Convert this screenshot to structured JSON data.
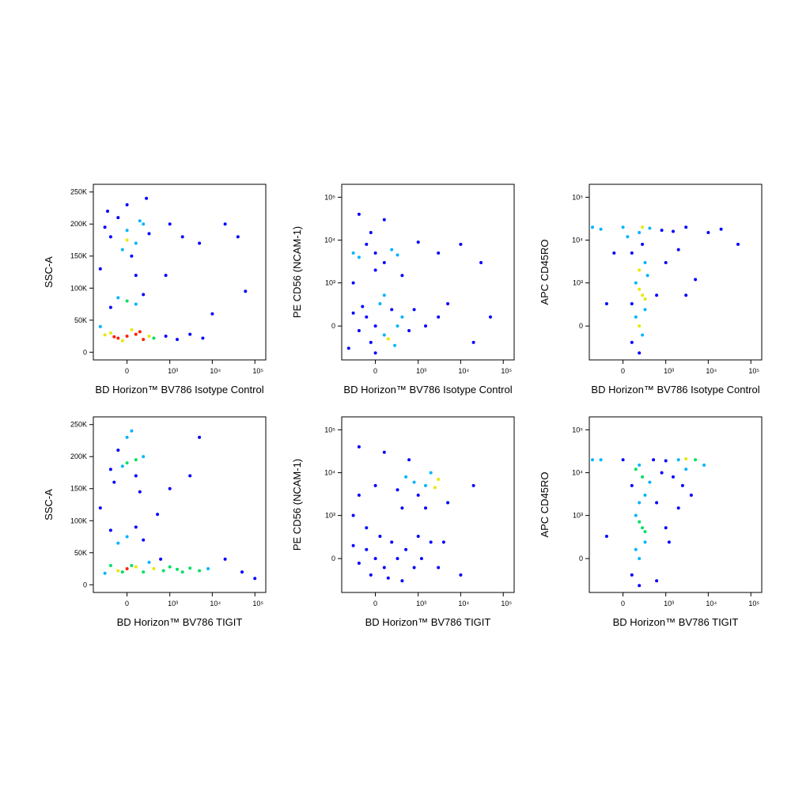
{
  "chart_data": [
    {
      "type": "scatter",
      "x_label": "BD Horizon™ BV786 Isotype Control",
      "y_label": "SSC-A",
      "x_scale": "biexponential",
      "y_scale": "linear",
      "xlim": [
        -600,
        180000
      ],
      "ylim": [
        -12000,
        262000
      ],
      "xticks": [
        0,
        {
          "value": 1000,
          "label": "10³"
        },
        {
          "value": 10000,
          "label": "10⁴"
        },
        {
          "value": 100000,
          "label": "10⁵"
        }
      ],
      "yticks": [
        0,
        {
          "value": 50000,
          "label": "50K"
        },
        {
          "value": 100000,
          "label": "100K"
        },
        {
          "value": 150000,
          "label": "150K"
        },
        {
          "value": 200000,
          "label": "200K"
        },
        {
          "value": 250000,
          "label": "250K"
        }
      ],
      "colors": [
        "#0000ff",
        "#00b4ff",
        "#00e060",
        "#e8e800",
        "#ff2000"
      ],
      "x": [
        0,
        -100,
        100,
        -200,
        200,
        50,
        -50,
        300,
        -300,
        150,
        -150,
        400,
        800,
        1500,
        3000,
        6000,
        -400,
        0,
        -200,
        200,
        -100,
        100,
        0,
        -200,
        200,
        -100,
        100,
        -300,
        300,
        0,
        -50,
        50,
        -250,
        250,
        0,
        150,
        1000,
        2000,
        5000,
        20000,
        40000,
        60000,
        10000,
        800,
        -400,
        100
      ],
      "y": [
        25000,
        22000,
        28000,
        30000,
        20000,
        35000,
        18000,
        25000,
        27000,
        32000,
        24000,
        22000,
        25000,
        20000,
        28000,
        22000,
        40000,
        80000,
        70000,
        90000,
        85000,
        75000,
        190000,
        180000,
        200000,
        210000,
        170000,
        195000,
        185000,
        230000,
        160000,
        150000,
        220000,
        240000,
        175000,
        205000,
        200000,
        180000,
        170000,
        200000,
        180000,
        95000,
        60000,
        120000,
        130000,
        120000
      ]
    },
    {
      "type": "scatter",
      "x_label": "BD Horizon™ BV786 Isotype Control",
      "y_label": "PE CD56 (NCAM-1)",
      "x_scale": "biexponential",
      "y_scale": "biexponential",
      "xlim": [
        -600,
        180000
      ],
      "ylim": [
        -600,
        200000
      ],
      "xticks": [
        0,
        {
          "value": 1000,
          "label": "10³"
        },
        {
          "value": 10000,
          "label": "10⁴"
        },
        {
          "value": 100000,
          "label": "10⁵"
        }
      ],
      "yticks": [
        0,
        {
          "value": 1000,
          "label": "10³"
        },
        {
          "value": 10000,
          "label": "10⁴"
        },
        {
          "value": 100000,
          "label": "10⁵"
        }
      ],
      "colors": [
        "#0000ff",
        "#00b4ff",
        "#00e060",
        "#e8e800",
        "#ff2000"
      ],
      "x": [
        0,
        -100,
        100,
        200,
        -200,
        50,
        -50,
        300,
        -300,
        150,
        400,
        600,
        800,
        1500,
        3000,
        -400,
        0,
        100,
        -150,
        250,
        0,
        -200,
        200,
        -100,
        100,
        -300,
        300,
        0,
        -50,
        100,
        -200,
        3000,
        10000,
        30000,
        50000,
        20000,
        5000,
        1000,
        400,
        -300
      ],
      "y": [
        0,
        100,
        -100,
        200,
        -50,
        300,
        -200,
        0,
        150,
        -150,
        100,
        -50,
        200,
        0,
        100,
        -300,
        -400,
        500,
        250,
        -250,
        5000,
        4000,
        6000,
        8000,
        3000,
        5000,
        4500,
        2000,
        15000,
        30000,
        40000,
        5000,
        8000,
        3000,
        100,
        -200,
        300,
        9000,
        1500,
        1000
      ]
    },
    {
      "type": "scatter",
      "x_label": "BD Horizon™ BV786 Isotype Control",
      "y_label": "APC CD45RO",
      "x_scale": "biexponential",
      "y_scale": "biexponential",
      "xlim": [
        -600,
        180000
      ],
      "ylim": [
        -600,
        200000
      ],
      "xticks": [
        0,
        {
          "value": 1000,
          "label": "10³"
        },
        {
          "value": 10000,
          "label": "10⁴"
        },
        {
          "value": 100000,
          "label": "10⁵"
        }
      ],
      "yticks": [
        0,
        {
          "value": 1000,
          "label": "10³"
        },
        {
          "value": 10000,
          "label": "10⁴"
        },
        {
          "value": 100000,
          "label": "10⁵"
        }
      ],
      "colors": [
        "#0000ff",
        "#00b4ff",
        "#00e060",
        "#e8e800",
        "#ff2000"
      ],
      "x": [
        200,
        100,
        300,
        250,
        150,
        200,
        300,
        100,
        250,
        200,
        -300,
        -500,
        0,
        400,
        800,
        1500,
        200,
        150,
        250,
        300,
        200,
        100,
        350,
        50,
        250,
        600,
        -200,
        -100,
        3000,
        10000,
        20000,
        50000,
        5000,
        3000,
        1000,
        2000
      ],
      "y": [
        0,
        -200,
        200,
        500,
        1000,
        2000,
        3000,
        5000,
        8000,
        15000,
        18000,
        20000,
        20000,
        19000,
        17000,
        16000,
        -400,
        100,
        -100,
        400,
        700,
        300,
        1500,
        12000,
        20000,
        500,
        300,
        5000,
        20000,
        15000,
        18000,
        8000,
        1200,
        500,
        3000,
        6000
      ]
    },
    {
      "type": "scatter",
      "x_label": "BD Horizon™ BV786 TIGIT",
      "y_label": "SSC-A",
      "x_scale": "biexponential",
      "y_scale": "linear",
      "xlim": [
        -600,
        180000
      ],
      "ylim": [
        -12000,
        262000
      ],
      "xticks": [
        0,
        {
          "value": 1000,
          "label": "10³"
        },
        {
          "value": 10000,
          "label": "10⁴"
        },
        {
          "value": 100000,
          "label": "10⁵"
        }
      ],
      "yticks": [
        0,
        {
          "value": 50000,
          "label": "50K"
        },
        {
          "value": 100000,
          "label": "100K"
        },
        {
          "value": 150000,
          "label": "150K"
        },
        {
          "value": 200000,
          "label": "200K"
        },
        {
          "value": 250000,
          "label": "250K"
        }
      ],
      "colors": [
        "#0000ff",
        "#00b4ff",
        "#00e060",
        "#e8e800",
        "#ff2000"
      ],
      "x": [
        0,
        -100,
        100,
        200,
        -200,
        400,
        700,
        1000,
        1500,
        2000,
        3000,
        5000,
        8000,
        300,
        -300,
        50,
        600,
        -50,
        0,
        -200,
        200,
        100,
        -100,
        0,
        -200,
        200,
        -100,
        100,
        0,
        -150,
        150,
        50,
        -50,
        100,
        20000,
        100000,
        50000,
        5000,
        3000,
        -400,
        500,
        1000
      ],
      "y": [
        25000,
        22000,
        28000,
        20000,
        30000,
        25000,
        22000,
        28000,
        24000,
        20000,
        26000,
        22000,
        25000,
        35000,
        18000,
        30000,
        40000,
        20000,
        75000,
        85000,
        70000,
        90000,
        65000,
        190000,
        180000,
        200000,
        210000,
        170000,
        230000,
        160000,
        145000,
        240000,
        185000,
        195000,
        40000,
        10000,
        20000,
        230000,
        170000,
        120000,
        110000,
        150000
      ]
    },
    {
      "type": "scatter",
      "x_label": "BD Horizon™ BV786 TIGIT",
      "y_label": "PE CD56 (NCAM-1)",
      "x_scale": "biexponential",
      "y_scale": "biexponential",
      "xlim": [
        -600,
        180000
      ],
      "ylim": [
        -600,
        200000
      ],
      "xticks": [
        0,
        {
          "value": 1000,
          "label": "10³"
        },
        {
          "value": 10000,
          "label": "10⁴"
        },
        {
          "value": 100000,
          "label": "10⁵"
        }
      ],
      "yticks": [
        0,
        {
          "value": 1000,
          "label": "10³"
        },
        {
          "value": 10000,
          "label": "10⁴"
        },
        {
          "value": 100000,
          "label": "10⁵"
        }
      ],
      "colors": [
        "#0000ff",
        "#00b4ff",
        "#00e060",
        "#e8e800",
        "#ff2000"
      ],
      "x": [
        0,
        -100,
        100,
        200,
        -200,
        50,
        -50,
        300,
        -300,
        500,
        800,
        1200,
        2000,
        3000,
        400,
        1000,
        -100,
        150,
        0,
        300,
        800,
        1500,
        2500,
        3000,
        500,
        -200,
        1000,
        2000,
        100,
        -200,
        600,
        400,
        1500,
        5000,
        10000,
        -300,
        20000,
        4000
      ],
      "y": [
        0,
        100,
        -100,
        200,
        -50,
        300,
        -200,
        0,
        150,
        100,
        -100,
        0,
        200,
        -100,
        -300,
        300,
        500,
        -250,
        5000,
        4000,
        6000,
        5000,
        4500,
        7000,
        8000,
        3000,
        3000,
        10000,
        30000,
        40000,
        20000,
        1500,
        1500,
        2000,
        -200,
        1000,
        5000,
        200
      ]
    },
    {
      "type": "scatter",
      "x_label": "BD Horizon™ BV786 TIGIT",
      "y_label": "APC CD45RO",
      "x_scale": "biexponential",
      "y_scale": "biexponential",
      "xlim": [
        -600,
        180000
      ],
      "ylim": [
        -600,
        200000
      ],
      "xticks": [
        0,
        {
          "value": 1000,
          "label": "10³"
        },
        {
          "value": 10000,
          "label": "10⁴"
        },
        {
          "value": 100000,
          "label": "10⁵"
        }
      ],
      "yticks": [
        0,
        {
          "value": 1000,
          "label": "10³"
        },
        {
          "value": 10000,
          "label": "10⁴"
        },
        {
          "value": 100000,
          "label": "10⁵"
        }
      ],
      "colors": [
        "#0000ff",
        "#00b4ff",
        "#00e060",
        "#e8e800",
        "#ff2000"
      ],
      "x": [
        200,
        100,
        300,
        250,
        150,
        200,
        300,
        100,
        250,
        200,
        200,
        150,
        300,
        200,
        -300,
        -500,
        0,
        500,
        1000,
        2000,
        3000,
        5000,
        800,
        1500,
        2500,
        3000,
        600,
        1000,
        2000,
        4000,
        600,
        1200,
        400,
        -200,
        150,
        8000
      ],
      "y": [
        0,
        -200,
        200,
        500,
        1000,
        2000,
        3000,
        5000,
        8000,
        15000,
        -400,
        100,
        400,
        700,
        20000,
        20000,
        20000,
        20000,
        19000,
        20000,
        21000,
        20000,
        10000,
        8000,
        5000,
        12000,
        2000,
        500,
        1500,
        3000,
        -300,
        200,
        6000,
        300,
        12000,
        15000
      ]
    }
  ]
}
